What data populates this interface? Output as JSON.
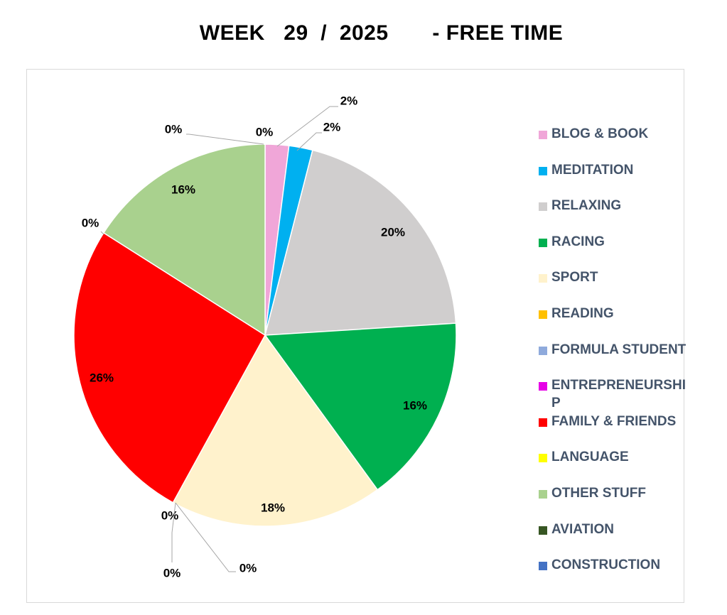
{
  "chart_data": {
    "type": "pie",
    "title": "WEEK   29  /  2025       - FREE TIME",
    "legend_position": "right",
    "slices": [
      {
        "label": "BLOG & BOOK",
        "value": 2,
        "display": "2%",
        "color": "#f0a6d8"
      },
      {
        "label": "MEDITATION",
        "value": 2,
        "display": "2%",
        "color": "#00b0f0"
      },
      {
        "label": "RELAXING",
        "value": 20,
        "display": "20%",
        "color": "#d0cece"
      },
      {
        "label": "RACING",
        "value": 16,
        "display": "16%",
        "color": "#00b050"
      },
      {
        "label": "SPORT",
        "value": 18,
        "display": "18%",
        "color": "#fff2cc"
      },
      {
        "label": "READING",
        "value": 0,
        "display": "0%",
        "color": "#ffc000"
      },
      {
        "label": "FORMULA STUDENT",
        "value": 0,
        "display": "0%",
        "color": "#8faadc"
      },
      {
        "label": "ENTREPRENEURSHIP",
        "value": 0,
        "display": "0%",
        "color": "#e600e6"
      },
      {
        "label": "FAMILY & FRIENDS",
        "value": 26,
        "display": "26%",
        "color": "#ff0000"
      },
      {
        "label": "LANGUAGE",
        "value": 0,
        "display": "0%",
        "color": "#ffff00"
      },
      {
        "label": "OTHER STUFF",
        "value": 16,
        "display": "16%",
        "color": "#a9d18e"
      },
      {
        "label": "AVIATION",
        "value": 0,
        "display": "0%",
        "color": "#375623"
      },
      {
        "label": "CONSTRUCTION",
        "value": 0,
        "display": "0%",
        "color": "#4472c4"
      }
    ]
  }
}
